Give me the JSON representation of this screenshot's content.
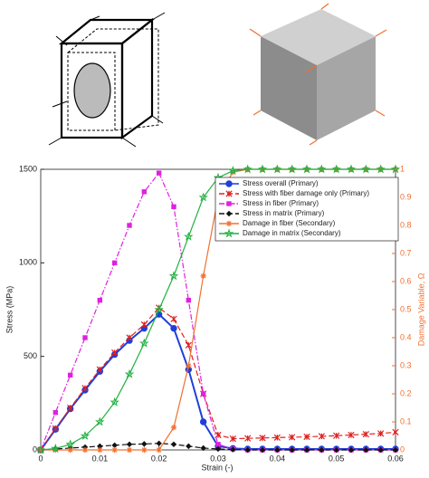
{
  "chart_data": {
    "type": "line",
    "x_label": "Strain (-)",
    "y_label": "Stress (MPa)",
    "y2_label": "Damage Variable, Ω",
    "x": [
      0,
      0.0025,
      0.005,
      0.0075,
      0.01,
      0.0125,
      0.015,
      0.0175,
      0.02,
      0.0225,
      0.025,
      0.0275,
      0.03,
      0.0325,
      0.035,
      0.0375,
      0.04,
      0.0425,
      0.045,
      0.0475,
      0.05,
      0.0525,
      0.055,
      0.0575,
      0.06
    ],
    "xlim": [
      0,
      0.06
    ],
    "xticks": [
      0,
      0.01,
      0.02,
      0.03,
      0.04,
      0.05,
      0.06
    ],
    "ylim": [
      0,
      1500
    ],
    "yticks": [
      0,
      500,
      1000,
      1500
    ],
    "y2lim": [
      0,
      1
    ],
    "y2ticks": [
      0,
      0.1,
      0.2,
      0.3,
      0.4,
      0.5,
      0.6,
      0.7,
      0.8,
      0.9,
      1
    ],
    "legend": "upper right",
    "series": [
      {
        "name": "Stress overall (Primary)",
        "color": "#1f3fd8",
        "marker": "circle",
        "dash": "solid",
        "values": [
          0,
          110,
          220,
          320,
          420,
          510,
          585,
          650,
          725,
          650,
          430,
          150,
          20,
          8,
          5,
          5,
          5,
          5,
          5,
          5,
          5,
          5,
          5,
          5,
          5
        ]
      },
      {
        "name": "Stress with fiber damage only (Primary)",
        "color": "#e02020",
        "marker": "x",
        "dash": "dashed",
        "values": [
          0,
          115,
          225,
          330,
          430,
          520,
          600,
          670,
          760,
          700,
          560,
          300,
          80,
          60,
          62,
          64,
          66,
          68,
          70,
          73,
          76,
          80,
          84,
          88,
          95
        ]
      },
      {
        "name": "Stress in fiber (Primary)",
        "color": "#e020e0",
        "marker": "square",
        "dash": "dashdot",
        "values": [
          0,
          200,
          400,
          600,
          800,
          1000,
          1200,
          1380,
          1480,
          1300,
          800,
          300,
          30,
          5,
          0,
          0,
          0,
          0,
          0,
          0,
          0,
          0,
          0,
          0,
          0
        ]
      },
      {
        "name": "Stress in matrix (Primary)",
        "color": "#111111",
        "marker": "diamond",
        "dash": "dashed",
        "values": [
          0,
          5,
          10,
          15,
          20,
          25,
          30,
          32,
          35,
          30,
          20,
          10,
          5,
          2,
          0,
          0,
          0,
          0,
          0,
          0,
          0,
          0,
          0,
          0,
          0
        ]
      },
      {
        "name": "Damage in fiber (Secondary)",
        "color": "#f07030",
        "marker": "asterisk",
        "dash": "solid",
        "axis": "y2",
        "values": [
          0,
          0,
          0,
          0,
          0,
          0,
          0,
          0,
          0,
          0.08,
          0.3,
          0.62,
          0.9,
          0.99,
          1,
          1,
          1,
          1,
          1,
          1,
          1,
          1,
          1,
          1,
          1
        ]
      },
      {
        "name": "Damage in matrix (Secondary)",
        "color": "#20b040",
        "marker": "star",
        "dash": "solid",
        "axis": "y2",
        "values": [
          0,
          0.005,
          0.02,
          0.05,
          0.1,
          0.17,
          0.27,
          0.38,
          0.5,
          0.62,
          0.76,
          0.9,
          0.97,
          0.995,
          1,
          1,
          1,
          1,
          1,
          1,
          1,
          1,
          1,
          1,
          1
        ]
      }
    ]
  }
}
